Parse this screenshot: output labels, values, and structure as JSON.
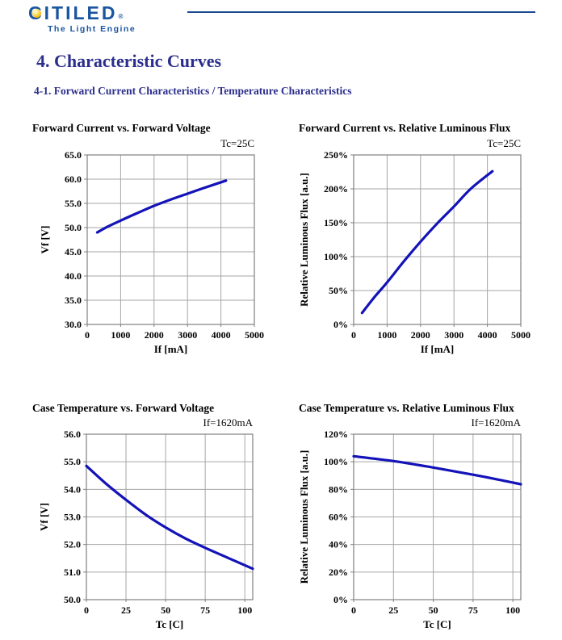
{
  "page": {
    "logo": {
      "brand": "CITILED",
      "brand_initial": "C",
      "brand_rest": "ITILED",
      "registered": "®",
      "tagline": "The Light Engine"
    },
    "heading": "4. Characteristic Curves",
    "subheading": "4-1. Forward Current Characteristics / Temperature Characteristics"
  },
  "colors": {
    "brand_blue": "#1A55A0",
    "heading_navy": "#2B2E8C",
    "header_rule_blue": "#1B4A94",
    "curve_blue": "#1313B8",
    "grid_gray": "#A6A6A6",
    "plot_border_gray": "#808080",
    "text_black": "#000000"
  },
  "chart_data": [
    {
      "type": "line",
      "title": "Forward Current vs. Forward Voltage",
      "condition": "Tc=25C",
      "xlabel": "If [mA]",
      "ylabel": "Vf [V]",
      "xlim": [
        0,
        5000
      ],
      "ylim": [
        30,
        65
      ],
      "xticks": [
        0,
        1000,
        2000,
        3000,
        4000,
        5000
      ],
      "xtick_labels": [
        "0",
        "1000",
        "2000",
        "3000",
        "4000",
        "5000"
      ],
      "yticks": [
        30,
        35,
        40,
        45,
        50,
        55,
        60,
        65
      ],
      "ytick_labels": [
        "30.0",
        "35.0",
        "40.0",
        "45.0",
        "50.0",
        "55.0",
        "60.0",
        "65.0"
      ],
      "grid": true,
      "legend": "none",
      "series": [
        {
          "name": "Vf vs If (Tc=25C)",
          "x": [
            300,
            600,
            1000,
            1500,
            2000,
            2500,
            3000,
            3500,
            4150
          ],
          "y": [
            49.0,
            50.15,
            51.45,
            53.0,
            54.5,
            55.8,
            57.0,
            58.2,
            59.7
          ]
        }
      ]
    },
    {
      "type": "line",
      "title": "Forward Current vs. Relative Luminous Flux",
      "condition": "Tc=25C",
      "xlabel": "If [mA]",
      "ylabel": "Relative Luminous Flux [a.u.]",
      "xlim": [
        0,
        5000
      ],
      "ylim": [
        0,
        250
      ],
      "xticks": [
        0,
        1000,
        2000,
        3000,
        4000,
        5000
      ],
      "xtick_labels": [
        "0",
        "1000",
        "2000",
        "3000",
        "4000",
        "5000"
      ],
      "yticks": [
        0,
        50,
        100,
        150,
        200,
        250
      ],
      "ytick_labels": [
        "0%",
        "50%",
        "100%",
        "150%",
        "200%",
        "250%"
      ],
      "grid": true,
      "legend": "none",
      "series": [
        {
          "name": "Relative flux vs If (Tc=25C)",
          "x": [
            250,
            600,
            1000,
            1500,
            2000,
            2500,
            3000,
            3500,
            4150
          ],
          "y": [
            17,
            39,
            62,
            93,
            122,
            149,
            174,
            200,
            226
          ]
        }
      ]
    },
    {
      "type": "line",
      "title": "Case Temperature vs. Forward Voltage",
      "condition": "If=1620mA",
      "xlabel": "Tc [C]",
      "ylabel": "Vf [V]",
      "xlim": [
        0,
        105
      ],
      "ylim": [
        50,
        56
      ],
      "xticks": [
        0,
        25,
        50,
        75,
        100
      ],
      "xtick_labels": [
        "0",
        "25",
        "50",
        "75",
        "100"
      ],
      "yticks": [
        50,
        51,
        52,
        53,
        54,
        55,
        56
      ],
      "ytick_labels": [
        "50.0",
        "51.0",
        "52.0",
        "53.0",
        "54.0",
        "55.0",
        "56.0"
      ],
      "grid": true,
      "legend": "none",
      "series": [
        {
          "name": "Vf vs Tc (If=1620mA)",
          "x": [
            0,
            12.5,
            25,
            37.5,
            50,
            62.5,
            75,
            90,
            105
          ],
          "y": [
            54.85,
            54.2,
            53.62,
            53.08,
            52.62,
            52.22,
            51.88,
            51.5,
            51.12
          ]
        }
      ]
    },
    {
      "type": "line",
      "title": "Case Temperature vs. Relative Luminous Flux",
      "condition": "If=1620mA",
      "xlabel": "Tc [C]",
      "ylabel": "Relative Luminous Flux [a.u.]",
      "xlim": [
        0,
        105
      ],
      "ylim": [
        0,
        120
      ],
      "xticks": [
        0,
        25,
        50,
        75,
        100
      ],
      "xtick_labels": [
        "0",
        "25",
        "50",
        "75",
        "100"
      ],
      "yticks": [
        0,
        20,
        40,
        60,
        80,
        100,
        120
      ],
      "ytick_labels": [
        "0%",
        "20%",
        "40%",
        "60%",
        "80%",
        "100%",
        "120%"
      ],
      "grid": true,
      "legend": "none",
      "series": [
        {
          "name": "Relative flux vs Tc (If=1620mA)",
          "x": [
            0,
            25,
            50,
            75,
            90,
            105
          ],
          "y": [
            104,
            100.5,
            95.8,
            90.6,
            87.3,
            83.7
          ]
        }
      ]
    }
  ]
}
